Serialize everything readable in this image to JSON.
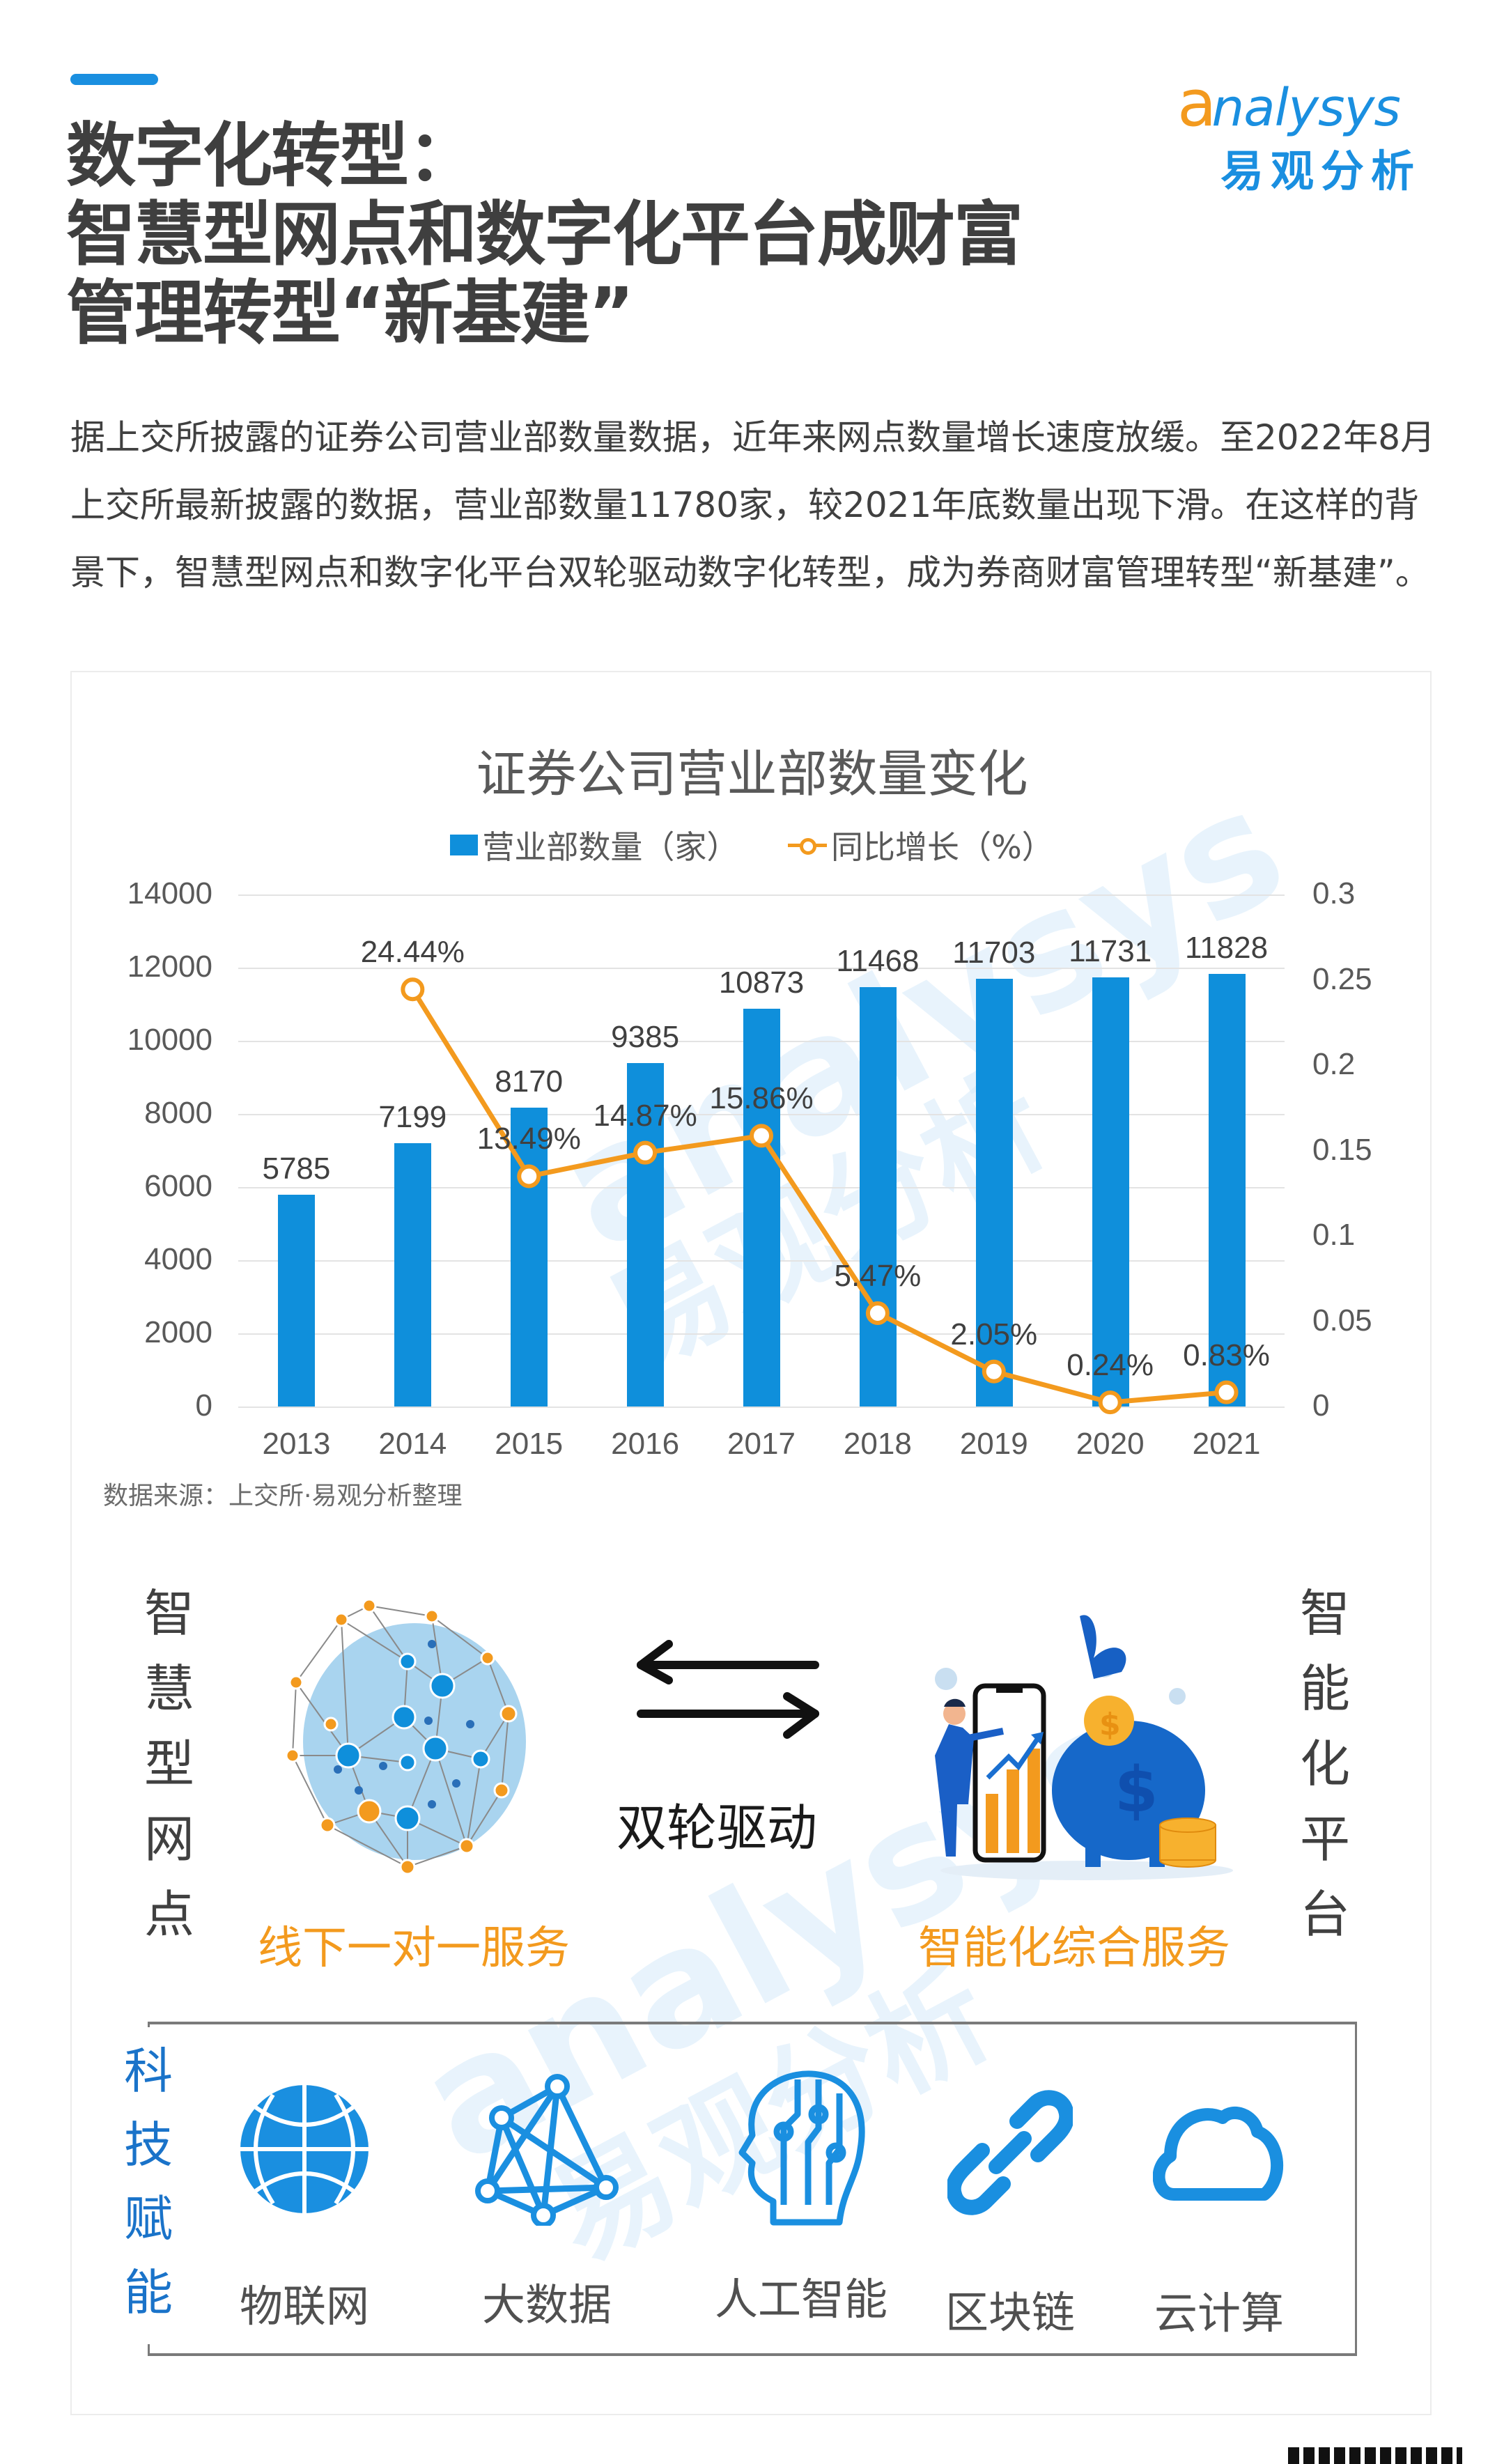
{
  "header": {
    "title_lines": [
      "数字化转型：",
      "智慧型网点和数字化平台成财富",
      "管理转型“新基建”"
    ],
    "logo": {
      "first_letter": "a",
      "rest": "nalysys",
      "cn": "易观分析"
    }
  },
  "intro": {
    "paragraph": "据上交所披露的证券公司营业部数量数据，近年来网点数量增长速度放缓。至2022年8月上交所最新披露的数据，营业部数量11780家，较2021年底数量出现下滑。在这样的背景下，智慧型网点和数字化平台双轮驱动数字化转型，成为券商财富管理转型“新基建”。"
  },
  "chart_data": {
    "type": "bar",
    "title": "证券公司营业部数量变化",
    "categories": [
      "2013",
      "2014",
      "2015",
      "2016",
      "2017",
      "2018",
      "2019",
      "2020",
      "2021"
    ],
    "series": [
      {
        "name": "营业部数量（家）",
        "type": "bar",
        "axis": "left",
        "color": "#0f8fdb",
        "values": [
          5785,
          7199,
          8170,
          9385,
          10873,
          11468,
          11703,
          11731,
          11828
        ],
        "labels": [
          "5785",
          "7199",
          "8170",
          "9385",
          "10873",
          "11468",
          "11703",
          "11731",
          "11828"
        ]
      },
      {
        "name": "同比增长（%）",
        "type": "line",
        "axis": "right",
        "color": "#f39a1e",
        "values": [
          null,
          0.2444,
          0.1349,
          0.1487,
          0.1586,
          0.0547,
          0.0205,
          0.0024,
          0.0083
        ],
        "labels": [
          "",
          "24.44%",
          "13.49%",
          "14.87%",
          "15.86%",
          "5.47%",
          "2.05%",
          "0.24%",
          "0.83%"
        ]
      }
    ],
    "left_axis": {
      "ticks": [
        "0",
        "2000",
        "4000",
        "6000",
        "8000",
        "10000",
        "12000",
        "14000"
      ],
      "ylim": [
        0,
        14000
      ]
    },
    "right_axis": {
      "ticks": [
        "0",
        "0.05",
        "0.1",
        "0.15",
        "0.2",
        "0.25",
        "0.3"
      ],
      "ylim": [
        0,
        0.3
      ]
    },
    "legend": [
      "营业部数量（家）",
      "同比增长（%）"
    ],
    "legend_position": "top",
    "grid": true,
    "source": "数据来源：上交所·易观分析整理"
  },
  "dual_drive": {
    "left_title": [
      "智",
      "慧",
      "型",
      "网",
      "点"
    ],
    "left_caption": "线下一对一服务",
    "center_label": "双轮驱动",
    "right_title": [
      "智",
      "能",
      "化",
      "平",
      "台"
    ],
    "right_caption": "智能化综合服务"
  },
  "tech": {
    "title": [
      "科",
      "技",
      "赋",
      "能"
    ],
    "items": [
      {
        "label": "物联网",
        "icon": "globe-icon"
      },
      {
        "label": "大数据",
        "icon": "network-icon"
      },
      {
        "label": "人工智能",
        "icon": "ai-head-icon"
      },
      {
        "label": "区块链",
        "icon": "chain-link-icon"
      },
      {
        "label": "云计算",
        "icon": "cloud-icon"
      }
    ]
  },
  "watermark": {
    "en": "analysys",
    "cn": "易观分析"
  },
  "colors": {
    "accent_blue": "#1a8fe0",
    "bar_blue": "#0f8fdb",
    "orange": "#f39a1e",
    "text_dark": "#404040"
  }
}
